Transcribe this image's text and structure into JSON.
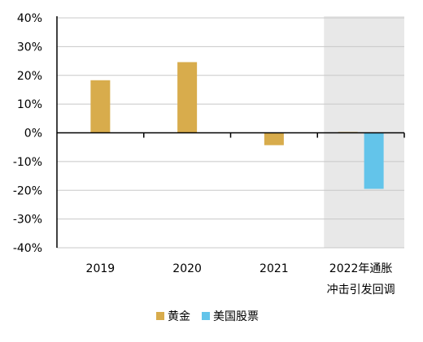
{
  "chart_data": {
    "type": "bar",
    "categories": [
      "2019",
      "2020",
      "2021",
      "2022年通胀冲击引发回调"
    ],
    "category_labels": [
      [
        "2019"
      ],
      [
        "2020"
      ],
      [
        "2021"
      ],
      [
        "2022年通胀",
        "冲击引发回调"
      ]
    ],
    "series": [
      {
        "name": "黄金",
        "color": "#D8AC4C",
        "values": [
          18.3,
          24.6,
          -4.3,
          0.3
        ]
      },
      {
        "name": "美国股票",
        "color": "#63C4EA",
        "values": [
          null,
          null,
          null,
          -19.5
        ]
      }
    ],
    "ylim": [
      -40,
      40
    ],
    "yticks": [
      40,
      30,
      20,
      10,
      0,
      -10,
      -20,
      -30,
      -40
    ],
    "ytick_labels": [
      "40%",
      "30%",
      "20%",
      "10%",
      "0%",
      "-10%",
      "-20%",
      "-30%",
      "-40%"
    ],
    "grid": true,
    "highlighted_category": "2022年通胀冲击引发回调",
    "highlight_color": "#E8E8E8",
    "legend_position": "bottom",
    "title": "",
    "xlabel": "",
    "ylabel": ""
  }
}
